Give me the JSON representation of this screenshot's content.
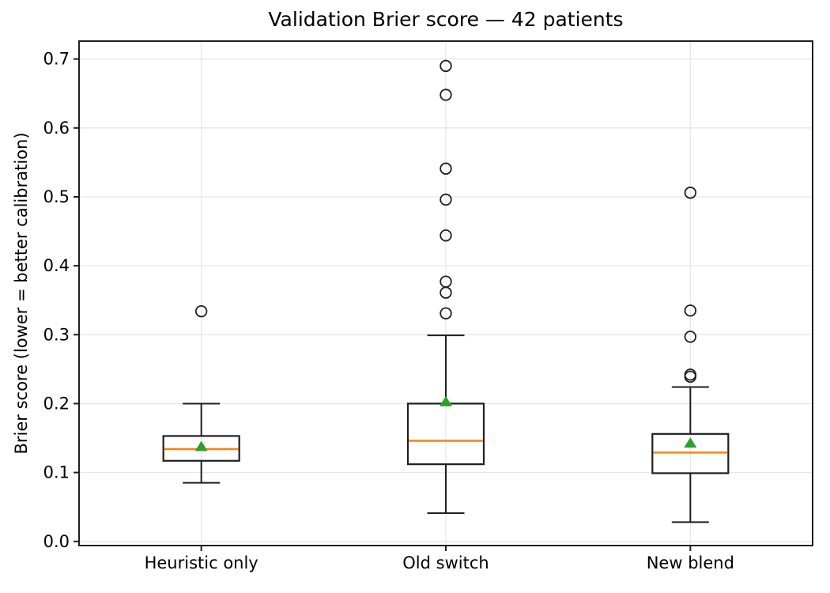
{
  "figure": {
    "title": "Validation Brier score — 42 patients",
    "ylabel": "Brier score (lower = better calibration)"
  },
  "colors": {
    "median": "#ff7f0e",
    "mean_marker": "#2ca02c",
    "box_line": "#1f1f1f",
    "grid": "#e7e7e7",
    "spine": "#1f1f1f",
    "text": "#000000",
    "background": "#ffffff"
  },
  "chart_data": {
    "type": "boxplot",
    "title": "Validation Brier score — 42 patients",
    "xlabel": "",
    "ylabel": "Brier score (lower = better calibration)",
    "categories": [
      "Heuristic only",
      "Old switch",
      "New blend"
    ],
    "yticks": [
      0.0,
      0.1,
      0.2,
      0.3,
      0.4,
      0.5,
      0.6,
      0.7
    ],
    "ytick_labels": [
      "0.0",
      "0.1",
      "0.2",
      "0.3",
      "0.4",
      "0.5",
      "0.6",
      "0.7"
    ],
    "ylim": [
      -0.006,
      0.726
    ],
    "grid": true,
    "legend": "none",
    "mean_marker_shape": "triangle-up",
    "series": [
      {
        "name": "Heuristic only",
        "whisker_low": 0.085,
        "q1": 0.117,
        "median": 0.134,
        "mean": 0.138,
        "q3": 0.153,
        "whisker_high": 0.2,
        "outliers": [
          0.334
        ]
      },
      {
        "name": "Old switch",
        "whisker_low": 0.041,
        "q1": 0.112,
        "median": 0.146,
        "mean": 0.203,
        "q3": 0.2,
        "whisker_high": 0.299,
        "outliers": [
          0.331,
          0.361,
          0.377,
          0.444,
          0.496,
          0.541,
          0.648,
          0.69
        ]
      },
      {
        "name": "New blend",
        "whisker_low": 0.028,
        "q1": 0.099,
        "median": 0.129,
        "mean": 0.143,
        "q3": 0.156,
        "whisker_high": 0.224,
        "outliers": [
          0.239,
          0.242,
          0.297,
          0.335,
          0.506
        ]
      }
    ]
  }
}
